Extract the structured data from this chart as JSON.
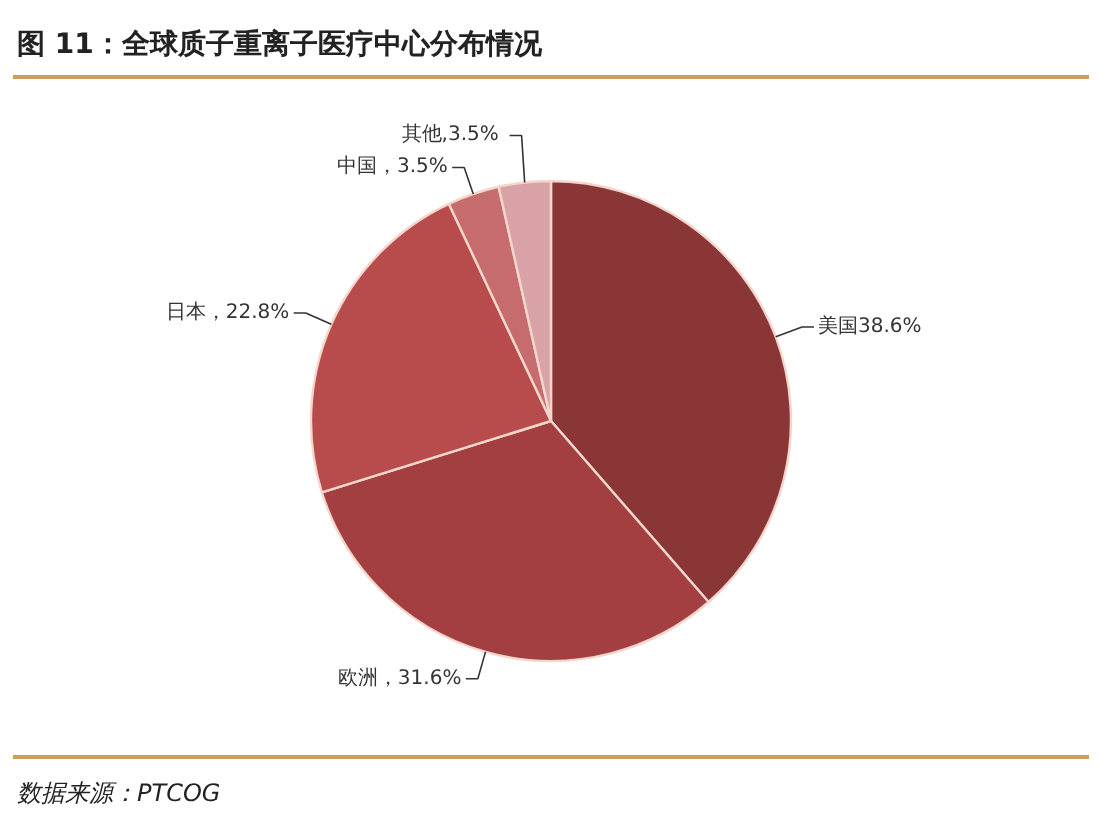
{
  "chart_data": {
    "type": "pie",
    "title": "图 11：全球质子重离子医疗中心分布情况",
    "categories": [
      "美国",
      "欧洲",
      "日本",
      "中国",
      "其他"
    ],
    "values": [
      38.6,
      31.6,
      22.8,
      3.5,
      3.5
    ],
    "colors": [
      "#8b3636",
      "#a33f40",
      "#b84b4c",
      "#c76c6e",
      "#d9a2a6"
    ],
    "value_labels": [
      "38.6%",
      "，31.6%",
      "，22.8%",
      "，3.5%",
      ",3.5%"
    ],
    "annotations": [
      "数据来源：PTCOG"
    ]
  }
}
